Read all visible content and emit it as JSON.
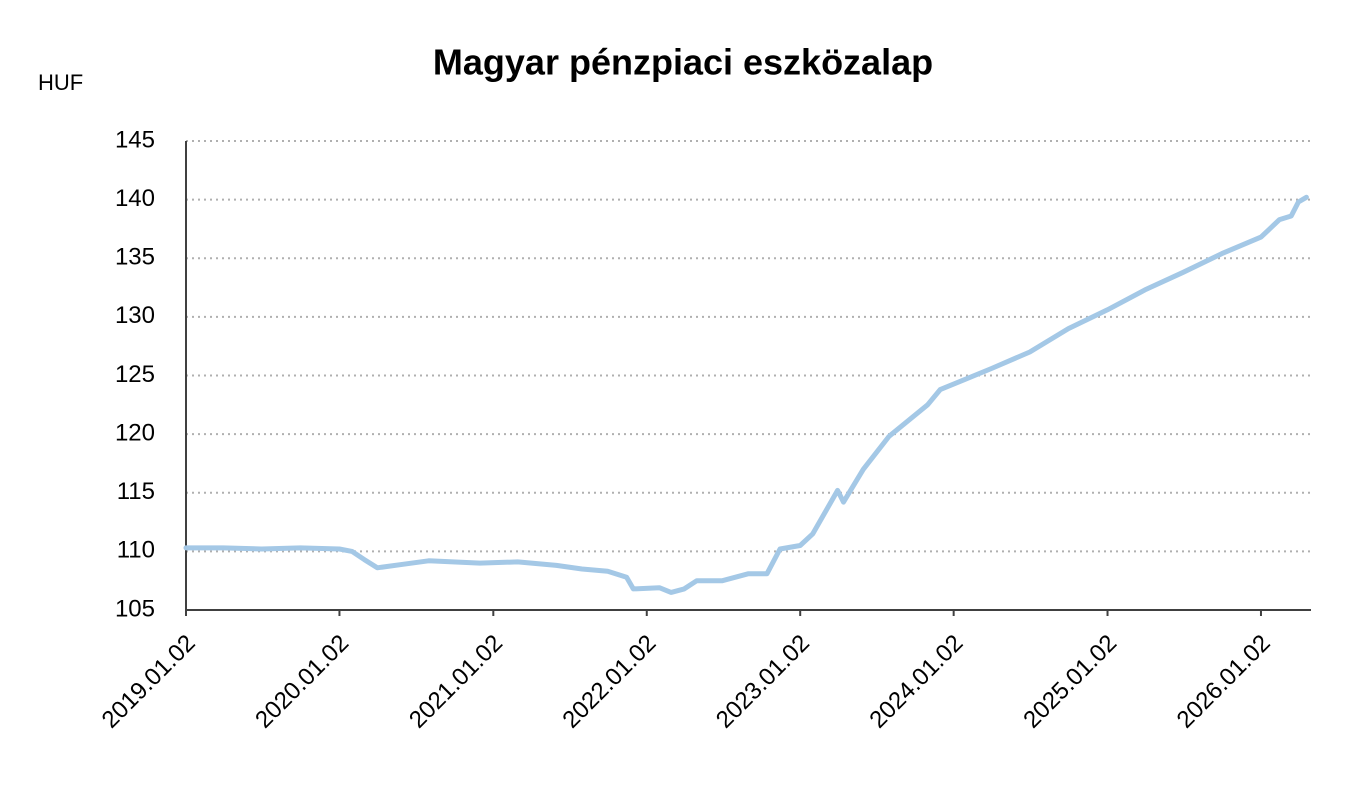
{
  "chart_data": {
    "type": "line",
    "title": "Magyar pénzpiaci eszközalap",
    "y_label": "HUF",
    "x": [
      "2019.01.02",
      "2019.04.01",
      "2019.07.01",
      "2019.10.01",
      "2020.01.02",
      "2020.02.01",
      "2020.03.01",
      "2020.04.01",
      "2020.06.01",
      "2020.08.01",
      "2020.12.01",
      "2021.03.01",
      "2021.06.01",
      "2021.08.01",
      "2021.10.01",
      "2021.11.15",
      "2021.12.01",
      "2022.02.01",
      "2022.03.01",
      "2022.04.01",
      "2022.05.01",
      "2022.07.01",
      "2022.09.01",
      "2022.10.15",
      "2022.11.15",
      "2023.01.02",
      "2023.02.01",
      "2023.04.01",
      "2023.04.15",
      "2023.06.01",
      "2023.08.01",
      "2023.11.01",
      "2023.12.01",
      "2024.04.01",
      "2024.07.01",
      "2024.10.01",
      "2025.01.02",
      "2025.04.01",
      "2025.07.01",
      "2025.10.01",
      "2026.01.02",
      "2026.02.15",
      "2026.03.15",
      "2026.04.01",
      "2026.04.20"
    ],
    "series": [
      {
        "name": "Magyar pénzpiaci eszközalap",
        "color": "#a4c8e6",
        "values": [
          110.3,
          110.3,
          110.2,
          110.3,
          110.2,
          110.0,
          109.3,
          108.6,
          108.9,
          109.2,
          109.0,
          109.1,
          108.8,
          108.5,
          108.3,
          107.8,
          106.8,
          106.9,
          106.5,
          106.8,
          107.5,
          107.5,
          108.1,
          108.1,
          110.2,
          110.5,
          111.5,
          115.2,
          114.2,
          117.0,
          119.8,
          122.5,
          123.8,
          125.6,
          127.0,
          129.0,
          130.6,
          132.3,
          133.8,
          135.4,
          136.8,
          138.3,
          138.6,
          139.8,
          140.2
        ]
      }
    ],
    "xlim": [
      "2019.01.02",
      "2026.05.01"
    ],
    "xticks": [
      "2019.01.02",
      "2020.01.02",
      "2021.01.02",
      "2022.01.02",
      "2023.01.02",
      "2024.01.02",
      "2025.01.02",
      "2026.01.02"
    ],
    "ylim": [
      105,
      145
    ],
    "yticks": [
      105,
      110,
      115,
      120,
      125,
      130,
      135,
      140,
      145
    ],
    "grid": true
  }
}
